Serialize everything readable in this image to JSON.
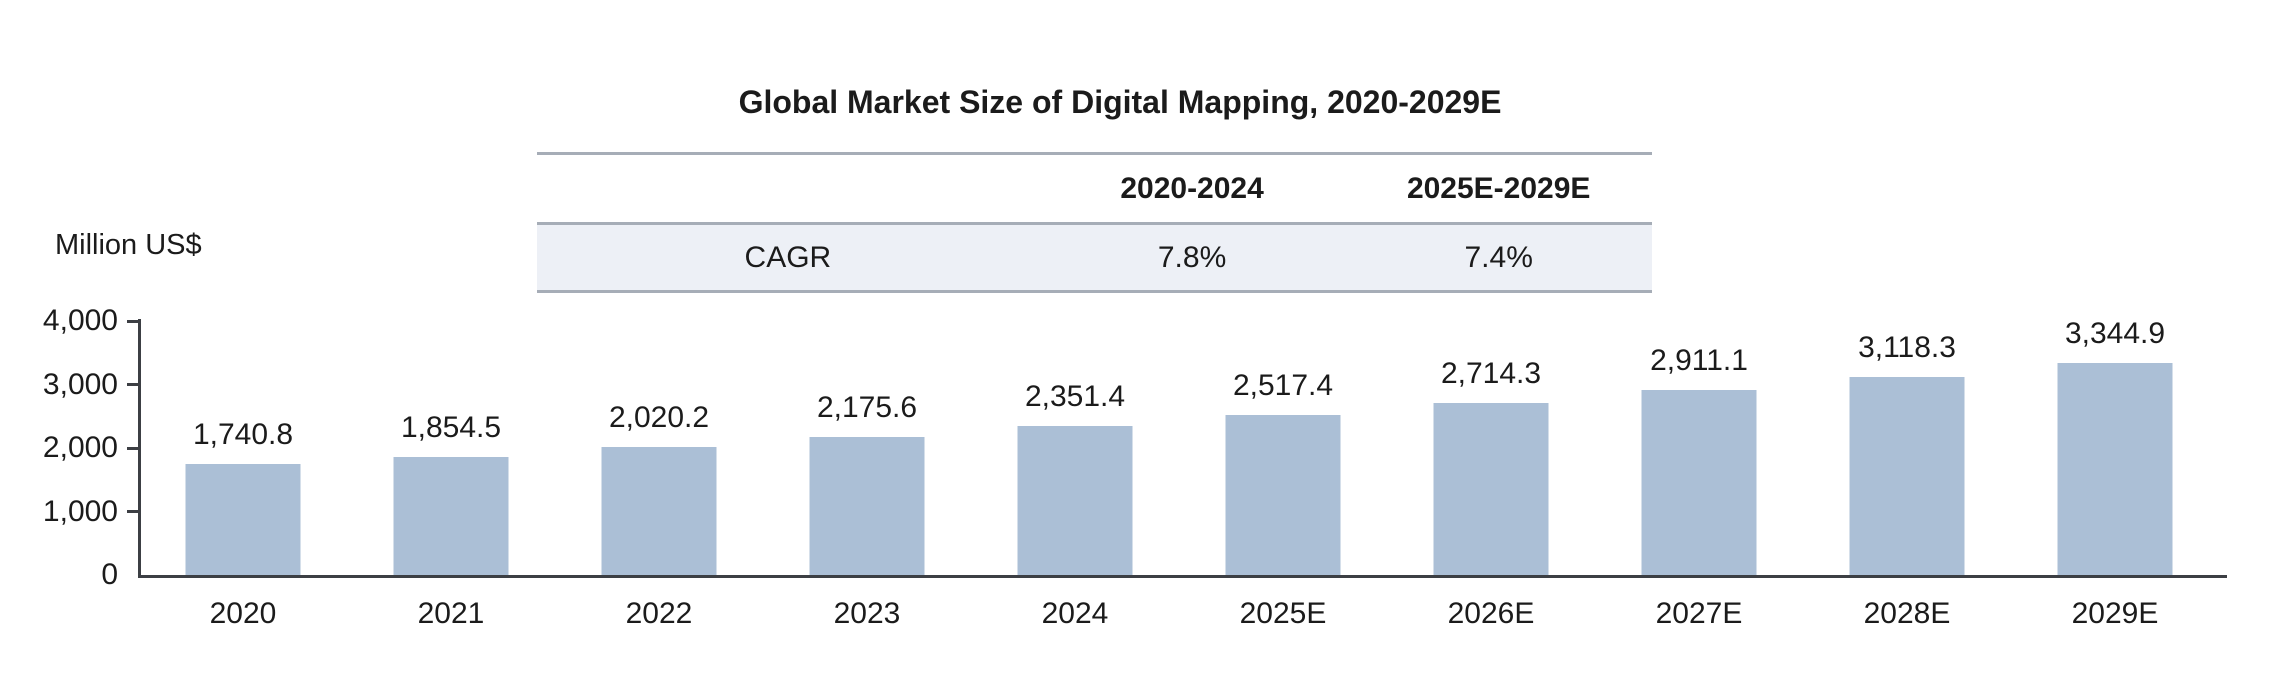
{
  "chart_data": {
    "type": "bar",
    "title": "Global Market Size of Digital Mapping, 2020-2029E",
    "unit_label": "Million US$",
    "categories": [
      "2020",
      "2021",
      "2022",
      "2023",
      "2024",
      "2025E",
      "2026E",
      "2027E",
      "2028E",
      "2029E"
    ],
    "values": [
      1740.8,
      1854.5,
      2020.2,
      2175.6,
      2351.4,
      2517.4,
      2714.3,
      2911.1,
      3118.3,
      3344.9
    ],
    "value_labels": [
      "1,740.8",
      "1,854.5",
      "2,020.2",
      "2,175.6",
      "2,351.4",
      "2,517.4",
      "2,714.3",
      "2,911.1",
      "3,118.3",
      "3,344.9"
    ],
    "ylim": [
      0,
      4000
    ],
    "ytick_values": [
      0,
      1000,
      2000,
      3000,
      4000
    ],
    "ytick_labels": [
      "0",
      "1,000",
      "2,000",
      "3,000",
      "4,000"
    ],
    "grid": false,
    "legend": "none",
    "bar_color": "#abbfd6",
    "axis_color": "#3c3f44",
    "table_line_color": "#a6adb7",
    "table_row_bg": "#edf0f6",
    "cagr_table": {
      "col_headers": [
        "",
        "2020-2024",
        "2025E-2029E"
      ],
      "row_label": "CAGR",
      "row_values": [
        "7.8%",
        "7.4%"
      ]
    }
  }
}
